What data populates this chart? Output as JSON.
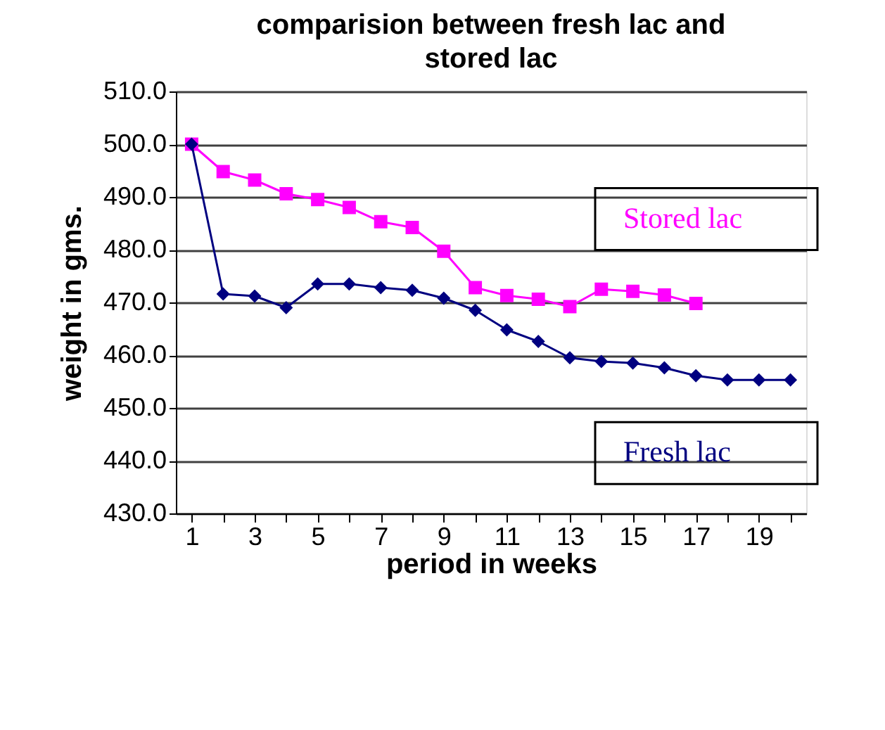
{
  "chart_data": {
    "type": "line",
    "title": "comparision between fresh lac and stored lac",
    "xlabel": "period in weeks",
    "ylabel": "weight in gms.",
    "x": [
      1,
      2,
      3,
      4,
      5,
      6,
      7,
      8,
      9,
      10,
      11,
      12,
      13,
      14,
      15,
      16,
      17,
      18,
      19,
      20
    ],
    "xlim": [
      0.5,
      20.5
    ],
    "xticks": [
      1,
      {
        "value": 2,
        "label": null
      },
      3,
      {
        "value": 4,
        "label": null
      },
      5,
      {
        "value": 6,
        "label": null
      },
      7,
      {
        "value": 8,
        "label": null
      },
      9,
      {
        "value": 10,
        "label": null
      },
      11,
      {
        "value": 12,
        "label": null
      },
      13,
      {
        "value": 14,
        "label": null
      },
      15,
      {
        "value": 16,
        "label": null
      },
      17,
      {
        "value": 18,
        "label": null
      },
      19,
      {
        "value": 20,
        "label": null
      }
    ],
    "ylim": [
      430,
      510
    ],
    "yticks": [
      {
        "value": 430,
        "label": "430.0"
      },
      {
        "value": 440,
        "label": "440.0"
      },
      {
        "value": 450,
        "label": "450.0"
      },
      {
        "value": 460,
        "label": "460.0"
      },
      {
        "value": 470,
        "label": "470.0"
      },
      {
        "value": 480,
        "label": "480.0"
      },
      {
        "value": 490,
        "label": "490.0"
      },
      {
        "value": 500,
        "label": "500.0"
      },
      {
        "value": 510,
        "label": "510.0"
      }
    ],
    "grid": "y",
    "legend": false,
    "series": [
      {
        "name": "Stored lac",
        "color": "#ff00ff",
        "marker": "square",
        "values": [
          500,
          494.8,
          493.2,
          490.6,
          489.5,
          488,
          485.3,
          484.2,
          479.7,
          472.8,
          471.3,
          470.6,
          469.2,
          472.5,
          472.1,
          471.4,
          469.8,
          null,
          null,
          null
        ]
      },
      {
        "name": "Fresh lac",
        "color": "#000080",
        "marker": "diamond",
        "values": [
          500,
          471.6,
          471.2,
          469,
          473.5,
          473.5,
          472.8,
          472.3,
          470.8,
          468.5,
          464.8,
          462.6,
          459.5,
          458.8,
          458.5,
          457.6,
          456.1,
          455.3,
          455.3,
          455.3
        ]
      }
    ]
  }
}
